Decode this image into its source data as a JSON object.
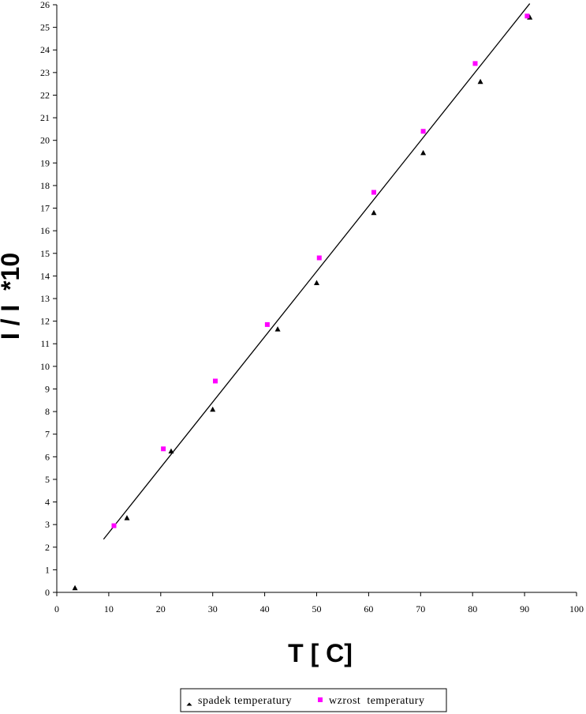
{
  "chart_data": {
    "type": "scatter",
    "xlabel": "T [ C]",
    "ylabel": "I / I  *10",
    "xlim": [
      0,
      100
    ],
    "ylim": [
      0,
      26
    ],
    "x_ticks": [
      0,
      10,
      20,
      30,
      40,
      50,
      60,
      70,
      80,
      90,
      100
    ],
    "y_ticks": [
      0,
      1,
      2,
      3,
      4,
      5,
      6,
      7,
      8,
      9,
      10,
      11,
      12,
      13,
      14,
      15,
      16,
      17,
      18,
      19,
      20,
      21,
      22,
      23,
      24,
      25,
      26
    ],
    "grid": false,
    "legend_position": "bottom",
    "series": [
      {
        "name": "spadek temperatury",
        "marker": "triangle",
        "color": "#000000",
        "points": [
          [
            3.5,
            0.2
          ],
          [
            13.5,
            3.3
          ],
          [
            22,
            6.25
          ],
          [
            30,
            8.1
          ],
          [
            42.5,
            11.65
          ],
          [
            50,
            13.7
          ],
          [
            61,
            16.8
          ],
          [
            70.5,
            19.45
          ],
          [
            81.5,
            22.6
          ],
          [
            91,
            25.45
          ]
        ]
      },
      {
        "name": "wzrost  temperatury",
        "marker": "square",
        "color": "#ff00ff",
        "points": [
          [
            11,
            2.95
          ],
          [
            20.5,
            6.35
          ],
          [
            30.5,
            9.35
          ],
          [
            40.5,
            11.85
          ],
          [
            50.5,
            14.8
          ],
          [
            61,
            17.7
          ],
          [
            70.5,
            20.4
          ],
          [
            80.5,
            23.4
          ],
          [
            90.5,
            25.5
          ]
        ]
      }
    ],
    "trendline": {
      "color": "#000000",
      "from": [
        9,
        2.35
      ],
      "to": [
        91,
        26.05
      ]
    }
  }
}
